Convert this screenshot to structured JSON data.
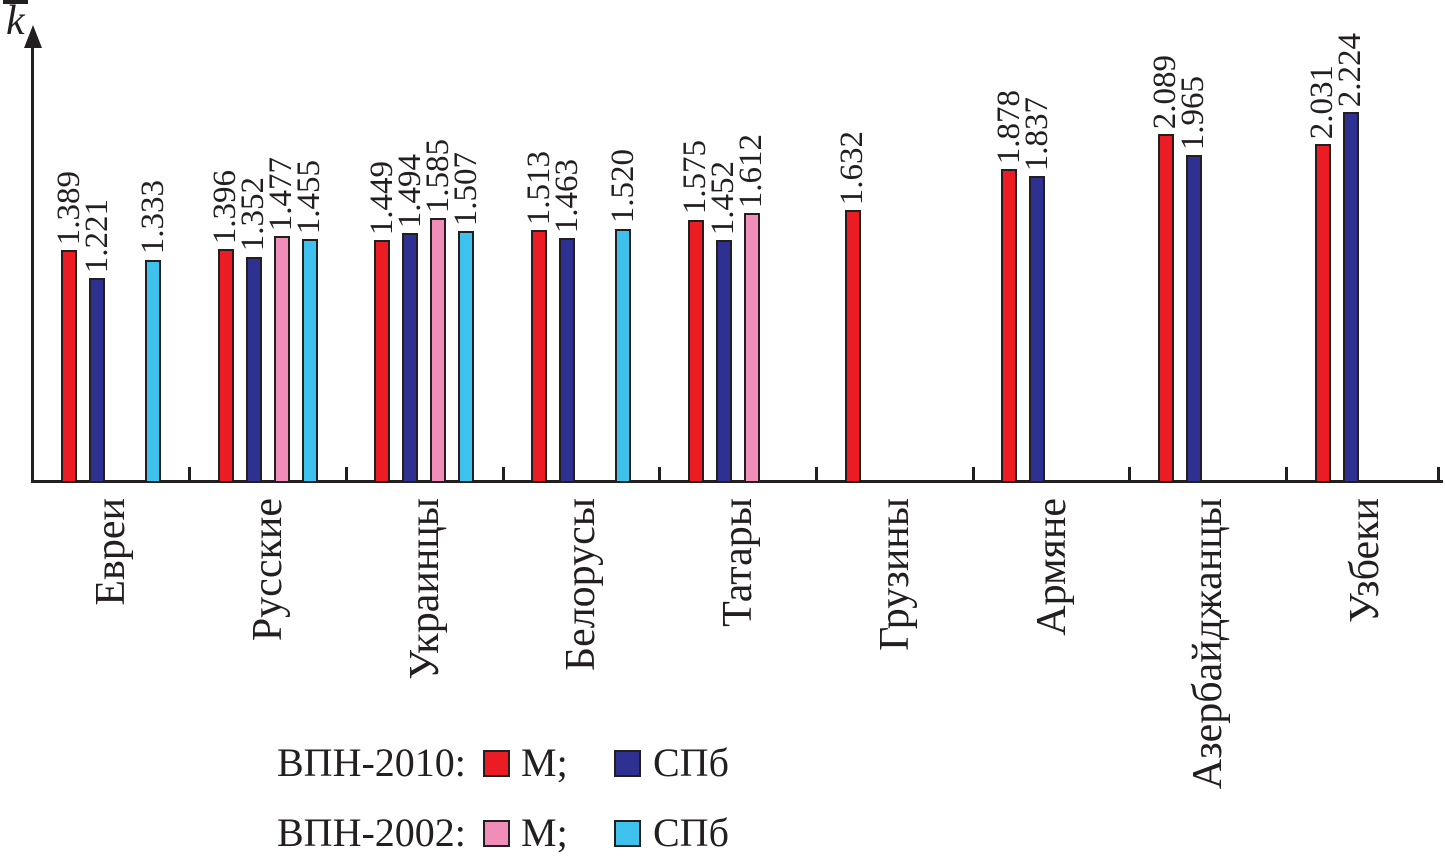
{
  "chart_data": {
    "type": "bar",
    "title": "",
    "xlabel": "",
    "ylabel": "k̄",
    "y_axis_ticks": "none",
    "grid": false,
    "bar_value_labels_rotated_90": true,
    "category_labels_rotated_90": true,
    "categories": [
      "Евреи",
      "Русские",
      "Украинцы",
      "Белорусы",
      "Татары",
      "Грузины",
      "Армяне",
      "Азербайджанцы",
      "Узбеки"
    ],
    "series": [
      {
        "name": "ВПН-2010 М",
        "color": "#EC1C24",
        "values": [
          1.389,
          1.396,
          1.449,
          1.513,
          1.575,
          1.632,
          1.878,
          2.089,
          2.031
        ]
      },
      {
        "name": "ВПН-2010 СПб",
        "color": "#2E3192",
        "values": [
          1.221,
          1.352,
          1.494,
          1.463,
          1.452,
          null,
          1.837,
          1.965,
          2.224
        ]
      },
      {
        "name": "ВПН-2002 М",
        "color": "#F08DB9",
        "values": [
          null,
          1.477,
          1.585,
          null,
          1.612,
          null,
          null,
          null,
          null
        ]
      },
      {
        "name": "ВПН-2002 СПб",
        "color": "#3FC1EE",
        "values": [
          1.333,
          1.455,
          1.507,
          1.52,
          null,
          null,
          null,
          null,
          null
        ]
      }
    ],
    "value_format_decimals": 3
  },
  "legend": {
    "rows": [
      {
        "label": "ВПН-2010:",
        "items": [
          {
            "swatch": "#EC1C24",
            "text": "М;"
          },
          {
            "swatch": "#2E3192",
            "text": "СПб"
          }
        ]
      },
      {
        "label": "ВПН-2002:",
        "items": [
          {
            "swatch": "#F08DB9",
            "text": "М;"
          },
          {
            "swatch": "#3FC1EE",
            "text": "СПб"
          }
        ]
      }
    ]
  },
  "colors": {
    "ink": "#231F20",
    "background": "#ffffff",
    "vpn2010_moscow": "#EC1C24",
    "vpn2010_spb": "#2E3192",
    "vpn2002_moscow": "#F08DB9",
    "vpn2002_spb": "#3FC1EE"
  }
}
